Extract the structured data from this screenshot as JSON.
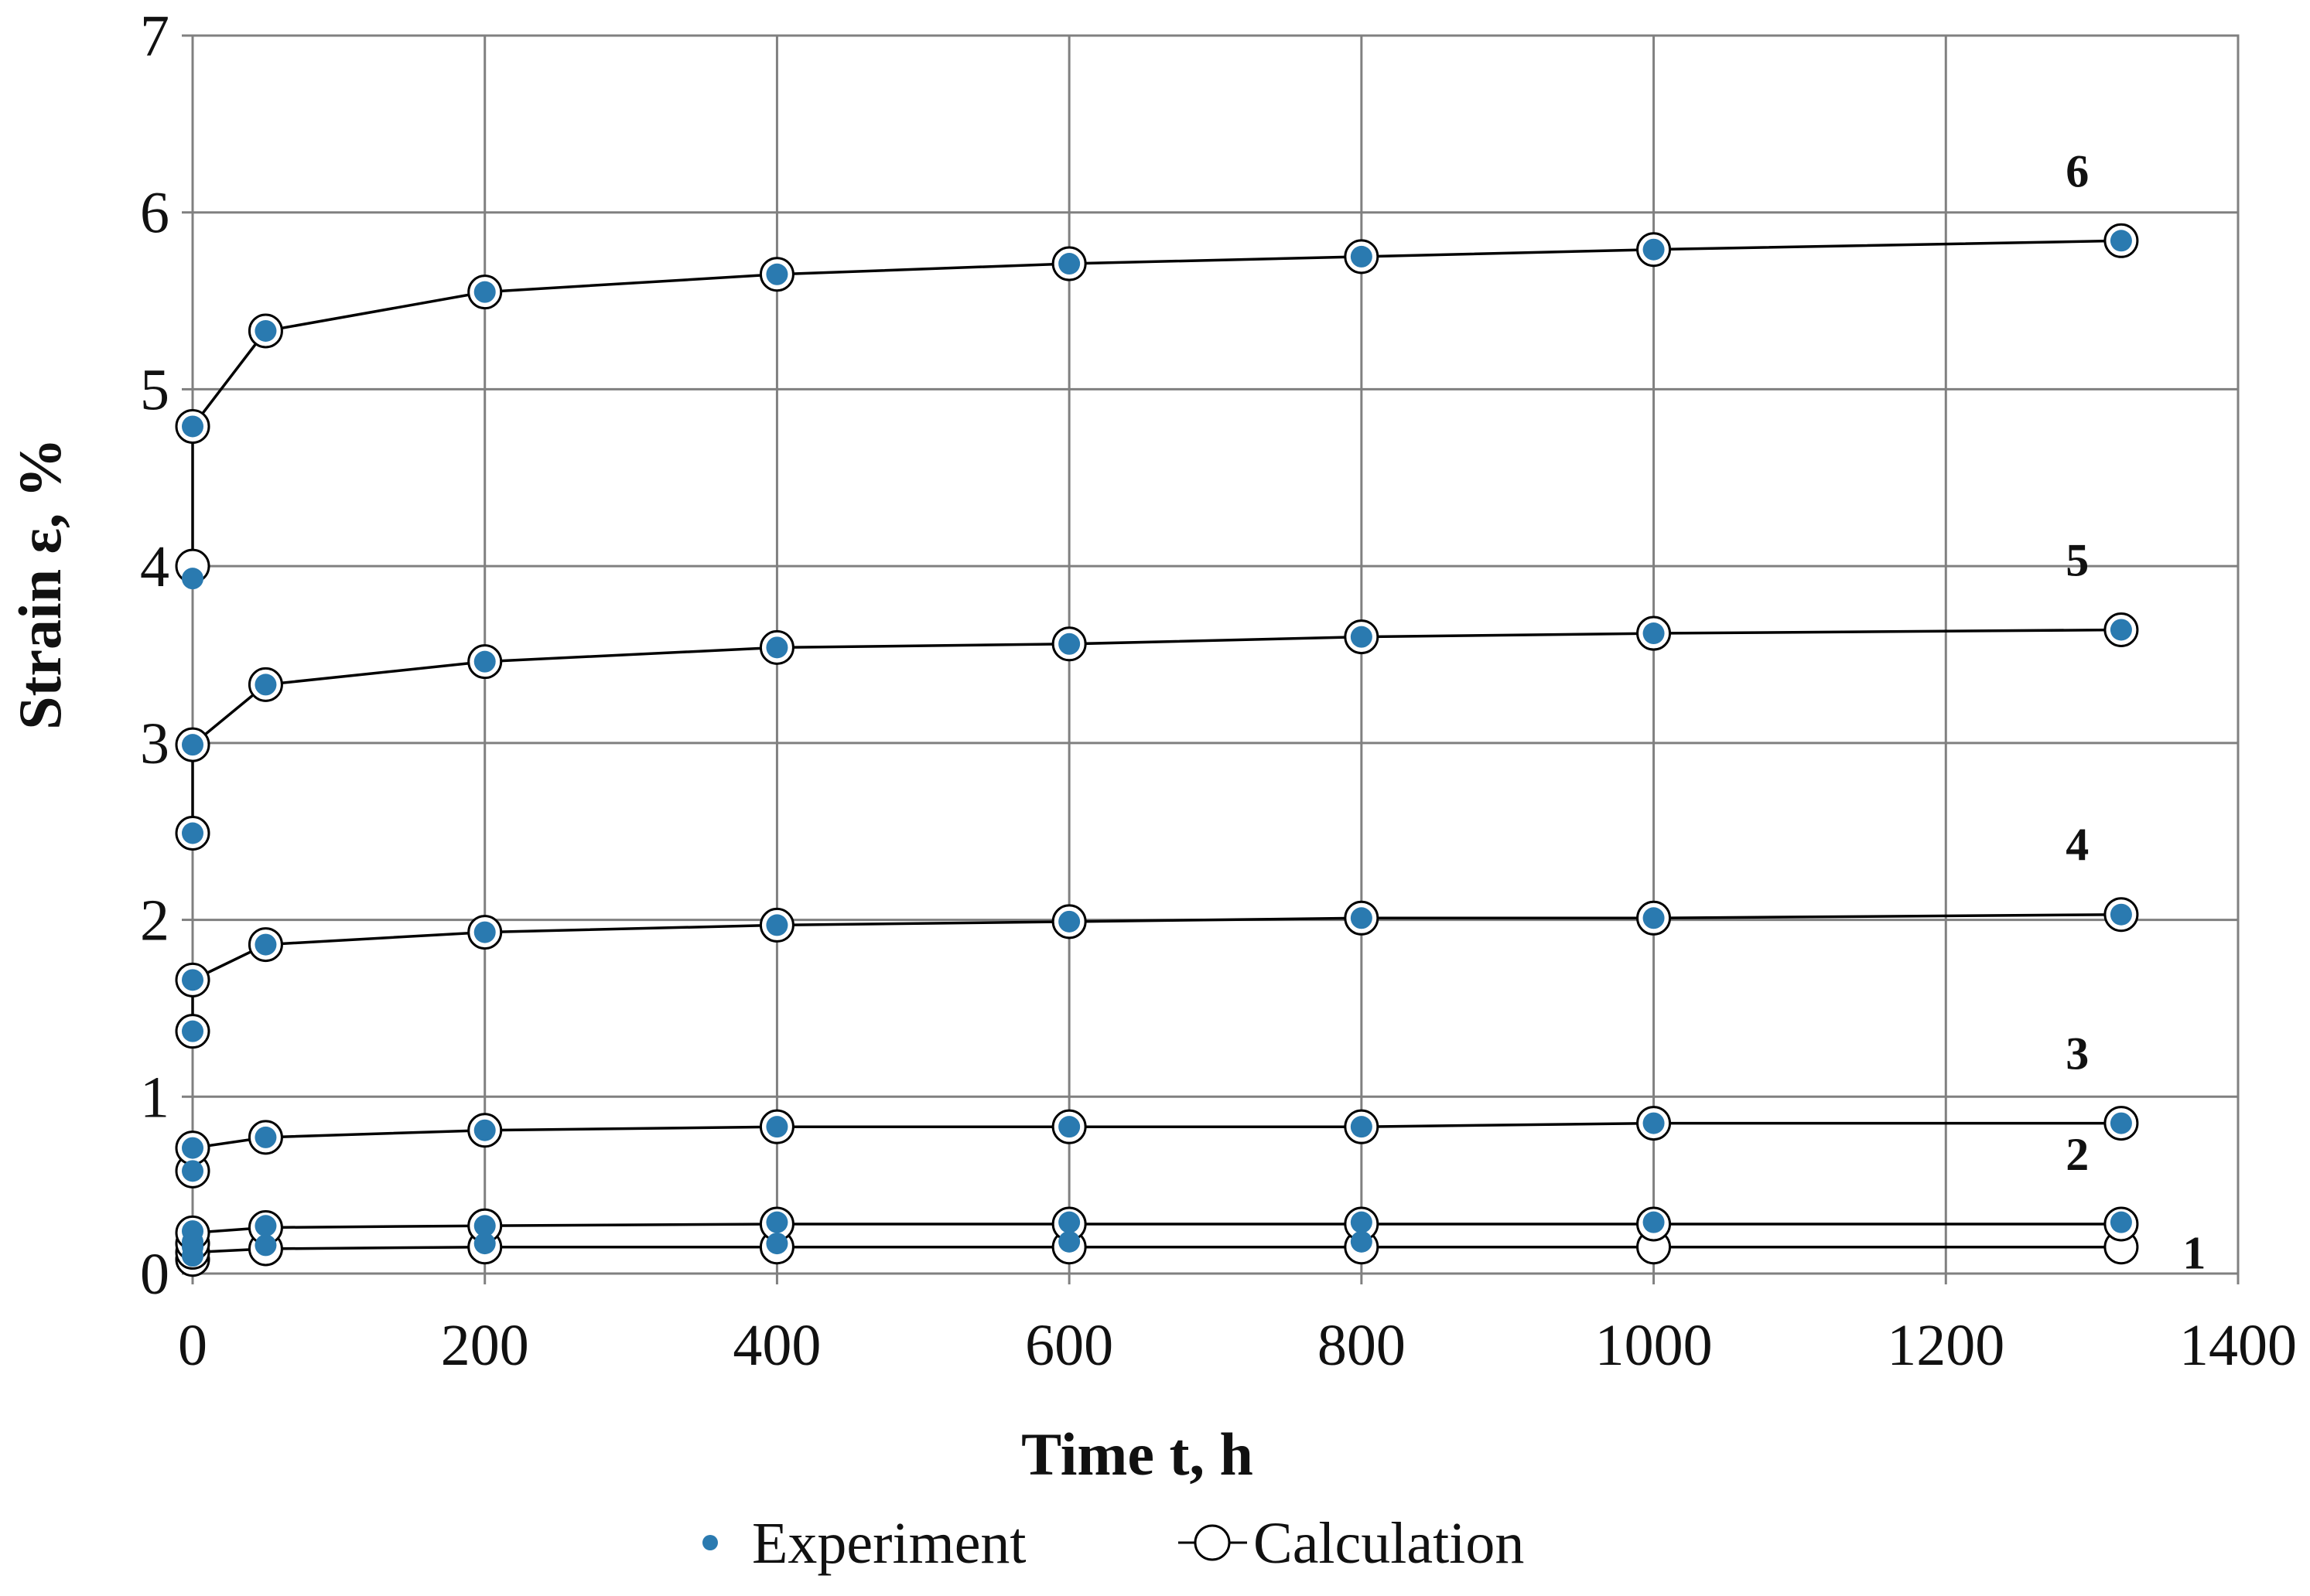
{
  "chart_data": {
    "type": "line",
    "title": "",
    "xlabel": "Time t, h",
    "ylabel": "Strain ε, %",
    "xlim": [
      0,
      1400
    ],
    "ylim": [
      0,
      7
    ],
    "x_ticks": [
      0,
      200,
      400,
      600,
      800,
      1000,
      1200,
      1400
    ],
    "y_ticks": [
      0,
      1,
      2,
      3,
      4,
      5,
      6,
      7
    ],
    "grid": true,
    "legend": {
      "position": "bottom",
      "entries": [
        {
          "name": "Experiment",
          "marker": "filled-dot",
          "color": "#2a7ab0"
        },
        {
          "name": "Calculation",
          "marker": "open-circle-line",
          "color": "#000000"
        }
      ]
    },
    "series": [
      {
        "label": "1",
        "calculation": {
          "x": [
            0,
            0,
            50,
            200,
            400,
            600,
            800,
            1000,
            1320
          ],
          "y": [
            0.08,
            0.12,
            0.14,
            0.15,
            0.15,
            0.15,
            0.15,
            0.15,
            0.15
          ]
        },
        "experiment": {
          "x": [
            0,
            0,
            50,
            200,
            400,
            600,
            800
          ],
          "y": [
            0.1,
            0.15,
            0.16,
            0.17,
            0.17,
            0.18,
            0.18
          ]
        }
      },
      {
        "label": "2",
        "calculation": {
          "x": [
            0,
            0,
            50,
            200,
            400,
            600,
            800,
            1000,
            1320
          ],
          "y": [
            0.17,
            0.23,
            0.26,
            0.27,
            0.28,
            0.28,
            0.28,
            0.28,
            0.28
          ]
        },
        "experiment": {
          "x": [
            0,
            0,
            50,
            200,
            400,
            600,
            800,
            1000,
            1320
          ],
          "y": [
            0.18,
            0.24,
            0.27,
            0.27,
            0.29,
            0.29,
            0.29,
            0.29,
            0.29
          ]
        }
      },
      {
        "label": "3",
        "calculation": {
          "x": [
            0,
            0,
            50,
            200,
            400,
            600,
            800,
            1000,
            1320
          ],
          "y": [
            0.58,
            0.71,
            0.77,
            0.81,
            0.83,
            0.83,
            0.83,
            0.85,
            0.85
          ]
        },
        "experiment": {
          "x": [
            0,
            0,
            50,
            200,
            400,
            600,
            800,
            1000,
            1320
          ],
          "y": [
            0.58,
            0.71,
            0.77,
            0.81,
            0.83,
            0.83,
            0.83,
            0.85,
            0.85
          ]
        }
      },
      {
        "label": "4",
        "calculation": {
          "x": [
            0,
            0,
            50,
            200,
            400,
            600,
            800,
            1000,
            1320
          ],
          "y": [
            1.37,
            1.66,
            1.86,
            1.93,
            1.97,
            1.99,
            2.01,
            2.01,
            2.03
          ]
        },
        "experiment": {
          "x": [
            0,
            0,
            50,
            200,
            400,
            600,
            800,
            1000,
            1320
          ],
          "y": [
            1.37,
            1.66,
            1.86,
            1.93,
            1.97,
            1.99,
            2.01,
            2.01,
            2.03
          ]
        }
      },
      {
        "label": "5",
        "calculation": {
          "x": [
            0,
            0,
            50,
            200,
            400,
            600,
            800,
            1000,
            1320
          ],
          "y": [
            2.49,
            2.99,
            3.33,
            3.46,
            3.54,
            3.56,
            3.6,
            3.62,
            3.64
          ]
        },
        "experiment": {
          "x": [
            0,
            0,
            50,
            200,
            400,
            600,
            800,
            1000,
            1320
          ],
          "y": [
            2.49,
            2.99,
            3.33,
            3.46,
            3.54,
            3.56,
            3.6,
            3.62,
            3.64
          ]
        }
      },
      {
        "label": "6",
        "calculation": {
          "x": [
            0,
            0,
            50,
            200,
            400,
            600,
            800,
            1000,
            1320
          ],
          "y": [
            4.0,
            4.79,
            5.33,
            5.55,
            5.65,
            5.71,
            5.75,
            5.79,
            5.84
          ]
        },
        "experiment": {
          "x": [
            0,
            0,
            50,
            200,
            400,
            600,
            800,
            1000,
            1320
          ],
          "y": [
            3.93,
            4.79,
            5.33,
            5.55,
            5.65,
            5.71,
            5.75,
            5.79,
            5.84
          ]
        }
      }
    ]
  }
}
